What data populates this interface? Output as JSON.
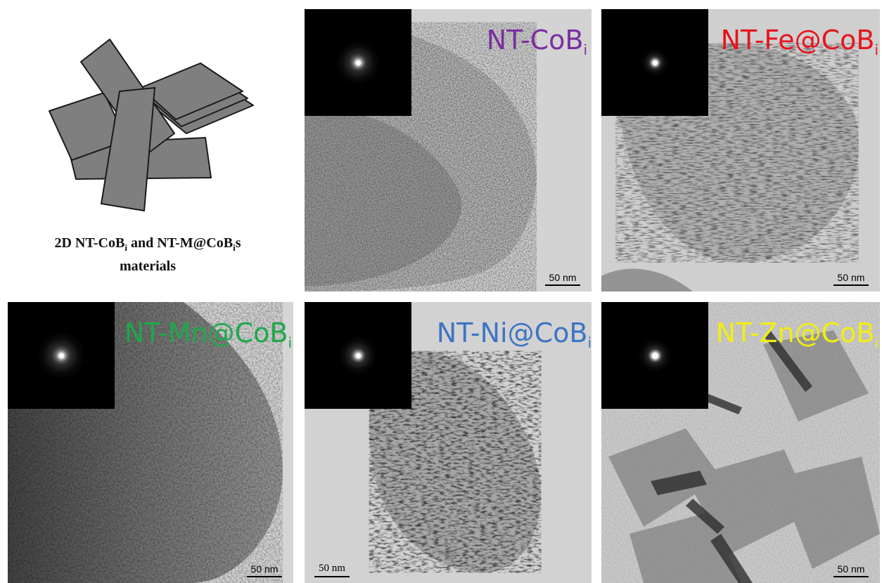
{
  "schematic": {
    "caption_line1_prefix": "2D NT-CoB",
    "caption_sub1": "i",
    "caption_mid": " and NT-M@CoB",
    "caption_sub2": "i",
    "caption_suffix": "s",
    "caption_line2": "materials"
  },
  "panels": [
    {
      "label": "NT-CoB",
      "sub": "i",
      "color": "#7a2fa0",
      "scale": "50 nm"
    },
    {
      "label": "NT-Fe@CoB",
      "sub": "i",
      "color": "#e8141c",
      "scale": "50 nm"
    },
    {
      "label": "NT-Mn@CoB",
      "sub": "i",
      "color": "#1ea84a",
      "scale": "50 nm"
    },
    {
      "label": "NT-Ni@CoB",
      "sub": "i",
      "color": "#3e74c4",
      "scale": "50 nm"
    },
    {
      "label": "NT-Zn@CoB",
      "sub": "i",
      "color": "#f2ee12",
      "scale": "50 nm"
    }
  ]
}
